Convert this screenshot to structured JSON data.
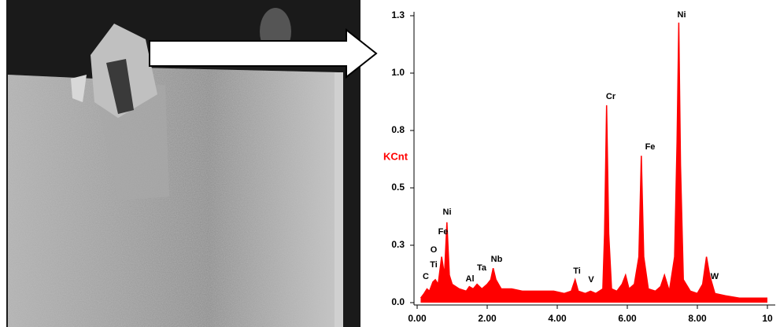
{
  "chart_data": {
    "type": "spectrum",
    "y_label": "KCnt",
    "color": "#ff0000",
    "xlim": [
      0,
      10
    ],
    "xticks": [
      {
        "value": 0,
        "label": "0.00"
      },
      {
        "value": 2,
        "label": "2.00"
      },
      {
        "value": 4,
        "label": "4.00"
      },
      {
        "value": 6,
        "label": "6.00"
      },
      {
        "value": 8,
        "label": "8.00"
      },
      10
    ],
    "ylim": [
      0,
      1.25
    ],
    "yticks": [
      {
        "value": 0,
        "label": "0.0"
      },
      {
        "value": 0.25,
        "label": "0.3"
      },
      {
        "value": 0.5,
        "label": "0.5"
      },
      {
        "value": 0.75,
        "label": "0.8"
      },
      {
        "value": 1,
        "label": "1.0"
      },
      {
        "value": 1.25,
        "label": "1.3"
      }
    ],
    "x": [
      0.1,
      0.2,
      0.28,
      0.35,
      0.45,
      0.52,
      0.6,
      0.7,
      0.78,
      0.85,
      0.92,
      1.0,
      1.2,
      1.4,
      1.49,
      1.6,
      1.71,
      1.85,
      2.0,
      2.1,
      2.17,
      2.25,
      2.4,
      2.7,
      3.0,
      3.3,
      3.6,
      3.9,
      4.2,
      4.4,
      4.51,
      4.6,
      4.8,
      4.95,
      5.1,
      5.3,
      5.35,
      5.41,
      5.47,
      5.55,
      5.7,
      5.85,
      5.95,
      6.05,
      6.2,
      6.33,
      6.4,
      6.47,
      6.6,
      6.8,
      6.95,
      7.06,
      7.2,
      7.35,
      7.42,
      7.47,
      7.52,
      7.6,
      7.8,
      8.0,
      8.15,
      8.26,
      8.35,
      8.5,
      8.8,
      9.2,
      9.6,
      10.0
    ],
    "values": [
      0.02,
      0.04,
      0.06,
      0.05,
      0.09,
      0.1,
      0.08,
      0.2,
      0.12,
      0.35,
      0.12,
      0.08,
      0.06,
      0.05,
      0.07,
      0.06,
      0.08,
      0.06,
      0.08,
      0.1,
      0.15,
      0.1,
      0.06,
      0.06,
      0.05,
      0.05,
      0.05,
      0.05,
      0.04,
      0.05,
      0.1,
      0.05,
      0.04,
      0.05,
      0.04,
      0.06,
      0.3,
      0.86,
      0.3,
      0.06,
      0.05,
      0.08,
      0.12,
      0.06,
      0.08,
      0.2,
      0.64,
      0.2,
      0.06,
      0.05,
      0.07,
      0.12,
      0.05,
      0.2,
      0.7,
      1.22,
      0.6,
      0.1,
      0.05,
      0.04,
      0.08,
      0.2,
      0.12,
      0.04,
      0.03,
      0.02,
      0.02,
      0.02
    ],
    "annotations": [
      "C",
      "O",
      "Ti",
      "Fe",
      "Ni",
      "Al",
      "Ta",
      "Nb",
      "Ti",
      "V",
      "Cr",
      "Fe",
      "Ni",
      "W"
    ]
  }
}
